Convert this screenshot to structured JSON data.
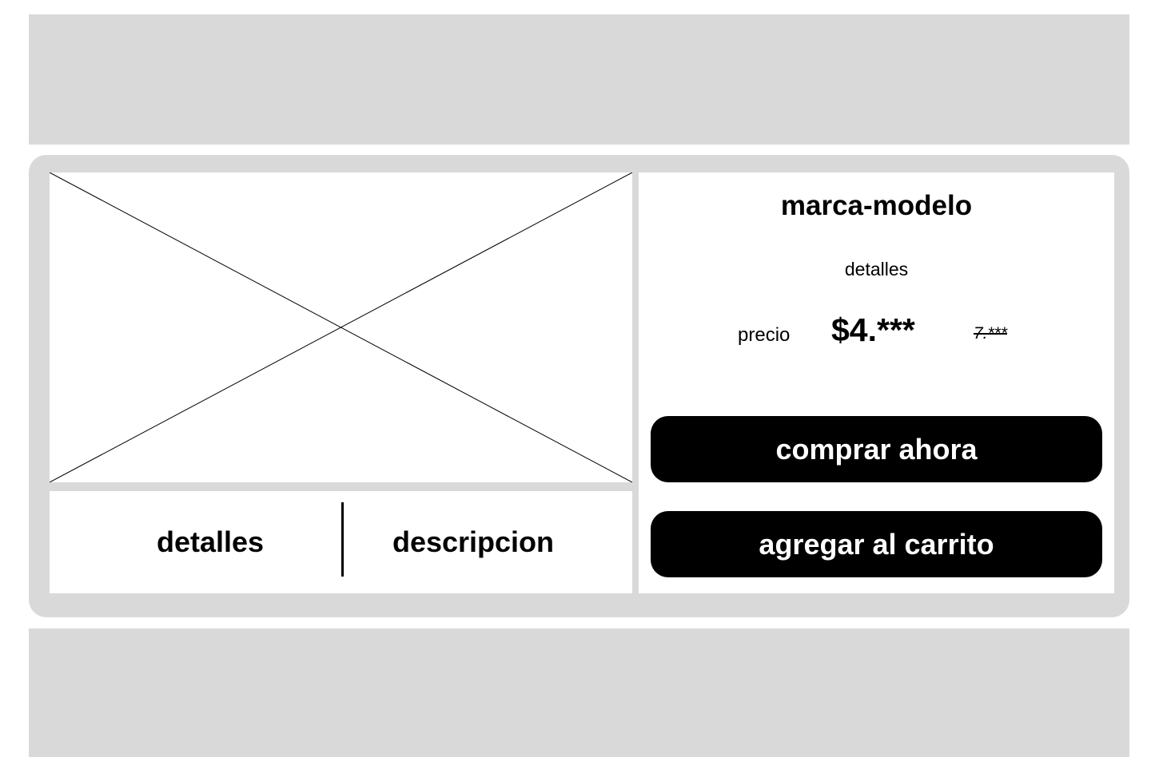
{
  "product": {
    "title": "marca-modelo",
    "details": "detalles",
    "price_label": "precio",
    "price_current": "$4.***",
    "price_old": "7.***"
  },
  "tabs": [
    {
      "label": "detalles"
    },
    {
      "label": "descripcion"
    }
  ],
  "actions": {
    "buy_now": "comprar ahora",
    "add_to_cart": "agregar al carrito"
  },
  "colors": {
    "placeholder_gray": "#d9d9d9",
    "button_black": "#000000",
    "button_text": "#ffffff"
  },
  "icons": {
    "image_placeholder": "image-placeholder-x-icon"
  }
}
